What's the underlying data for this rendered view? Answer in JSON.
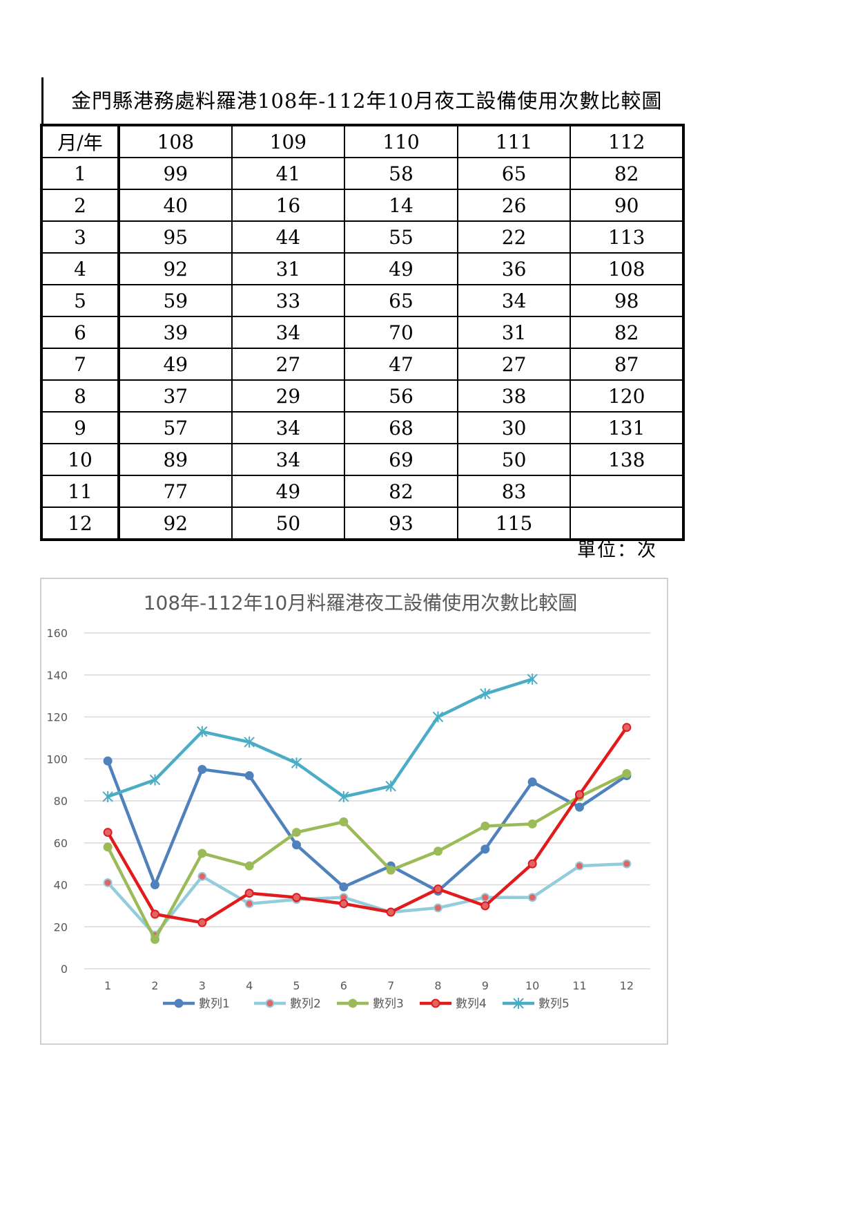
{
  "document": {
    "title": "金門縣港務處料羅港108年-112年10月夜工設備使用次數比較圖",
    "unit_label": "單位：次"
  },
  "table": {
    "header": [
      "月/年",
      "108",
      "109",
      "110",
      "111",
      "112"
    ],
    "rows": [
      [
        "1",
        "99",
        "41",
        "58",
        "65",
        "82"
      ],
      [
        "2",
        "40",
        "16",
        "14",
        "26",
        "90"
      ],
      [
        "3",
        "95",
        "44",
        "55",
        "22",
        "113"
      ],
      [
        "4",
        "92",
        "31",
        "49",
        "36",
        "108"
      ],
      [
        "5",
        "59",
        "33",
        "65",
        "34",
        "98"
      ],
      [
        "6",
        "39",
        "34",
        "70",
        "31",
        "82"
      ],
      [
        "7",
        "49",
        "27",
        "47",
        "27",
        "87"
      ],
      [
        "8",
        "37",
        "29",
        "56",
        "38",
        "120"
      ],
      [
        "9",
        "57",
        "34",
        "68",
        "30",
        "131"
      ],
      [
        "10",
        "89",
        "34",
        "69",
        "50",
        "138"
      ],
      [
        "11",
        "77",
        "49",
        "82",
        "83",
        ""
      ],
      [
        "12",
        "92",
        "50",
        "93",
        "115",
        ""
      ]
    ]
  },
  "chart_data": {
    "type": "line",
    "title": "108年-112年10月料羅港夜工設備使用次數比較圖",
    "xlabel": "",
    "ylabel": "",
    "categories": [
      "1",
      "2",
      "3",
      "4",
      "5",
      "6",
      "7",
      "8",
      "9",
      "10",
      "11",
      "12"
    ],
    "ylim": [
      0,
      160
    ],
    "yticks": [
      0,
      20,
      40,
      60,
      80,
      100,
      120,
      140,
      160
    ],
    "grid": true,
    "legend_position": "bottom",
    "series": [
      {
        "name": "數列1",
        "color": "#4f81bd",
        "marker": "circle",
        "values": [
          99,
          40,
          95,
          92,
          59,
          39,
          49,
          37,
          57,
          89,
          77,
          92
        ]
      },
      {
        "name": "數列2",
        "color": "#93cddd",
        "marker": "circle-red",
        "values": [
          41,
          16,
          44,
          31,
          33,
          34,
          27,
          29,
          34,
          34,
          49,
          50
        ]
      },
      {
        "name": "數列3",
        "color": "#9bbb59",
        "marker": "circle",
        "values": [
          58,
          14,
          55,
          49,
          65,
          70,
          47,
          56,
          68,
          69,
          82,
          93
        ]
      },
      {
        "name": "數列4",
        "color": "#e31a1c",
        "marker": "circle-red",
        "values": [
          65,
          26,
          22,
          36,
          34,
          31,
          27,
          38,
          30,
          50,
          83,
          115
        ]
      },
      {
        "name": "數列5",
        "color": "#4bacc6",
        "marker": "star",
        "values": [
          82,
          90,
          113,
          108,
          98,
          82,
          87,
          120,
          131,
          138,
          null,
          null
        ]
      }
    ]
  }
}
